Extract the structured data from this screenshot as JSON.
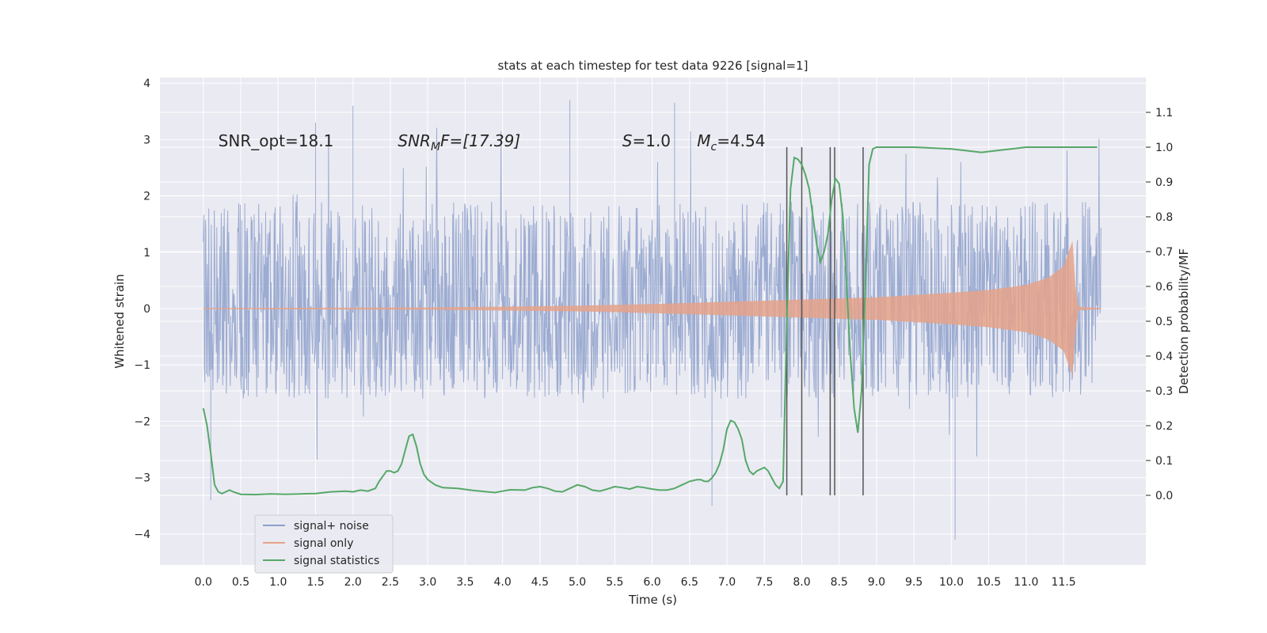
{
  "chart_data": {
    "type": "line",
    "title": "stats at each timestep for test data 9226 [signal=1]",
    "xlabel": "Time (s)",
    "ylabel_left": "Whitened strain",
    "ylabel_right": "Detection probability/MF",
    "xlim": [
      -0.58,
      12.6
    ],
    "ylim_left": [
      -4.55,
      4.1
    ],
    "ylim_right": [
      -0.2,
      1.2
    ],
    "x_ticks": [
      0.0,
      0.5,
      1.0,
      1.5,
      2.0,
      2.5,
      3.0,
      3.5,
      4.0,
      4.5,
      5.0,
      5.5,
      6.0,
      6.5,
      7.0,
      7.5,
      8.0,
      8.5,
      9.0,
      9.5,
      10.0,
      10.5,
      11.0,
      11.5
    ],
    "x_tick_labels": [
      "0.0",
      "0.5",
      "1.0",
      "1.5",
      "2.0",
      "2.5",
      "3.0",
      "3.5",
      "4.0",
      "4.5",
      "5.0",
      "5.5",
      "6.0",
      "6.5",
      "7.0",
      "7.5",
      "8.0",
      "8.5",
      "9.0",
      "9.5",
      "10.0",
      "10.5",
      "11.0",
      "11.5"
    ],
    "y_left_ticks": [
      -4,
      -3,
      -2,
      -1,
      0,
      1,
      2,
      3,
      4
    ],
    "y_left_tick_labels": [
      "−4",
      "−3",
      "−2",
      "−1",
      "0",
      "1",
      "2",
      "3",
      "4"
    ],
    "y_right_ticks": [
      0.0,
      0.1,
      0.2,
      0.3,
      0.4,
      0.5,
      0.6,
      0.7,
      0.8,
      0.9,
      1.0,
      1.1
    ],
    "y_right_tick_labels": [
      "0.0",
      "0.1",
      "0.2",
      "0.3",
      "0.4",
      "0.5",
      "0.6",
      "0.7",
      "0.8",
      "0.9",
      "1.0",
      "1.1"
    ],
    "grid": true,
    "legend_position": "lower-left",
    "series": [
      {
        "name": "signal+ noise",
        "axis": "left",
        "color": "#8da0cb",
        "description_values": {
          "x_range": [
            0.0,
            12.0
          ],
          "typical_envelope": [
            -1.6,
            1.9
          ],
          "max_spikes": [
            3.7,
            3.65,
            3.6,
            3.3
          ],
          "min_spikes": [
            -4.1,
            -3.5,
            -3.4
          ]
        }
      },
      {
        "name": "signal only",
        "axis": "left",
        "color": "#e5a28a",
        "envelope_points": [
          {
            "t": 0.0,
            "a": 0.01
          },
          {
            "t": 3.0,
            "a": 0.02
          },
          {
            "t": 5.0,
            "a": 0.05
          },
          {
            "t": 6.0,
            "a": 0.08
          },
          {
            "t": 7.0,
            "a": 0.12
          },
          {
            "t": 8.0,
            "a": 0.16
          },
          {
            "t": 9.0,
            "a": 0.2
          },
          {
            "t": 10.0,
            "a": 0.28
          },
          {
            "t": 10.5,
            "a": 0.33
          },
          {
            "t": 11.0,
            "a": 0.42
          },
          {
            "t": 11.3,
            "a": 0.55
          },
          {
            "t": 11.5,
            "a": 0.75
          },
          {
            "t": 11.62,
            "a": 1.2
          },
          {
            "t": 11.66,
            "a": 0.4
          },
          {
            "t": 11.7,
            "a": 0.03
          },
          {
            "t": 12.0,
            "a": 0.01
          }
        ]
      },
      {
        "name": "signal statistics",
        "axis": "right",
        "color": "#55a868",
        "points": [
          [
            0.0,
            0.25
          ],
          [
            0.05,
            0.2
          ],
          [
            0.1,
            0.12
          ],
          [
            0.15,
            0.03
          ],
          [
            0.2,
            0.01
          ],
          [
            0.25,
            0.005
          ],
          [
            0.3,
            0.01
          ],
          [
            0.35,
            0.015
          ],
          [
            0.4,
            0.01
          ],
          [
            0.5,
            0.003
          ],
          [
            0.7,
            0.002
          ],
          [
            0.9,
            0.004
          ],
          [
            1.1,
            0.003
          ],
          [
            1.3,
            0.004
          ],
          [
            1.5,
            0.005
          ],
          [
            1.7,
            0.01
          ],
          [
            1.9,
            0.012
          ],
          [
            2.0,
            0.01
          ],
          [
            2.1,
            0.015
          ],
          [
            2.2,
            0.012
          ],
          [
            2.3,
            0.02
          ],
          [
            2.35,
            0.04
          ],
          [
            2.45,
            0.07
          ],
          [
            2.5,
            0.07
          ],
          [
            2.55,
            0.065
          ],
          [
            2.6,
            0.07
          ],
          [
            2.65,
            0.09
          ],
          [
            2.7,
            0.13
          ],
          [
            2.75,
            0.17
          ],
          [
            2.8,
            0.175
          ],
          [
            2.85,
            0.14
          ],
          [
            2.9,
            0.09
          ],
          [
            2.95,
            0.06
          ],
          [
            3.0,
            0.045
          ],
          [
            3.1,
            0.03
          ],
          [
            3.2,
            0.022
          ],
          [
            3.4,
            0.02
          ],
          [
            3.6,
            0.014
          ],
          [
            3.8,
            0.01
          ],
          [
            3.9,
            0.008
          ],
          [
            4.0,
            0.012
          ],
          [
            4.1,
            0.016
          ],
          [
            4.3,
            0.015
          ],
          [
            4.4,
            0.022
          ],
          [
            4.5,
            0.025
          ],
          [
            4.6,
            0.02
          ],
          [
            4.7,
            0.012
          ],
          [
            4.8,
            0.01
          ],
          [
            4.9,
            0.02
          ],
          [
            5.0,
            0.03
          ],
          [
            5.1,
            0.025
          ],
          [
            5.2,
            0.015
          ],
          [
            5.3,
            0.012
          ],
          [
            5.4,
            0.018
          ],
          [
            5.5,
            0.025
          ],
          [
            5.6,
            0.022
          ],
          [
            5.7,
            0.018
          ],
          [
            5.8,
            0.025
          ],
          [
            5.9,
            0.022
          ],
          [
            6.0,
            0.018
          ],
          [
            6.1,
            0.015
          ],
          [
            6.2,
            0.015
          ],
          [
            6.3,
            0.02
          ],
          [
            6.4,
            0.03
          ],
          [
            6.5,
            0.04
          ],
          [
            6.6,
            0.045
          ],
          [
            6.65,
            0.045
          ],
          [
            6.7,
            0.04
          ],
          [
            6.75,
            0.04
          ],
          [
            6.8,
            0.05
          ],
          [
            6.85,
            0.065
          ],
          [
            6.9,
            0.09
          ],
          [
            6.95,
            0.13
          ],
          [
            7.0,
            0.19
          ],
          [
            7.05,
            0.215
          ],
          [
            7.1,
            0.21
          ],
          [
            7.15,
            0.19
          ],
          [
            7.2,
            0.16
          ],
          [
            7.25,
            0.1
          ],
          [
            7.3,
            0.07
          ],
          [
            7.35,
            0.06
          ],
          [
            7.4,
            0.07
          ],
          [
            7.45,
            0.075
          ],
          [
            7.5,
            0.08
          ],
          [
            7.55,
            0.07
          ],
          [
            7.6,
            0.05
          ],
          [
            7.65,
            0.03
          ],
          [
            7.7,
            0.02
          ],
          [
            7.75,
            0.04
          ],
          [
            7.8,
            0.5
          ],
          [
            7.85,
            0.88
          ],
          [
            7.9,
            0.97
          ],
          [
            7.95,
            0.965
          ],
          [
            8.0,
            0.95
          ],
          [
            8.05,
            0.92
          ],
          [
            8.1,
            0.88
          ],
          [
            8.15,
            0.8
          ],
          [
            8.2,
            0.72
          ],
          [
            8.25,
            0.67
          ],
          [
            8.3,
            0.7
          ],
          [
            8.35,
            0.75
          ],
          [
            8.4,
            0.85
          ],
          [
            8.45,
            0.91
          ],
          [
            8.5,
            0.895
          ],
          [
            8.55,
            0.8
          ],
          [
            8.6,
            0.6
          ],
          [
            8.65,
            0.4
          ],
          [
            8.7,
            0.25
          ],
          [
            8.75,
            0.18
          ],
          [
            8.8,
            0.3
          ],
          [
            8.85,
            0.6
          ],
          [
            8.9,
            0.95
          ],
          [
            8.95,
            0.995
          ],
          [
            9.0,
            1.0
          ],
          [
            9.5,
            1.0
          ],
          [
            10.0,
            0.995
          ],
          [
            10.2,
            0.99
          ],
          [
            10.4,
            0.985
          ],
          [
            10.6,
            0.99
          ],
          [
            10.8,
            0.995
          ],
          [
            11.0,
            1.0
          ],
          [
            11.5,
            1.0
          ],
          [
            11.95,
            1.0
          ]
        ]
      }
    ],
    "vertical_lines": [
      7.8,
      8.0,
      8.38,
      8.44,
      8.82
    ],
    "vertical_lines_range_right": [
      0.0,
      1.0
    ],
    "annotations": {
      "snr_opt": "SNR_opt=18.1",
      "snr_mf_base": "SNR",
      "snr_mf_sub": "M",
      "snr_mf_rest": "F=[17.39]",
      "s_base": "S",
      "s_rest": "=1.0",
      "mc_base": "M",
      "mc_sub": "c",
      "mc_rest": "=4.54"
    },
    "colors": {
      "background": "#eaeaf2",
      "grid": "#ffffff",
      "vlines": "#555555"
    }
  }
}
